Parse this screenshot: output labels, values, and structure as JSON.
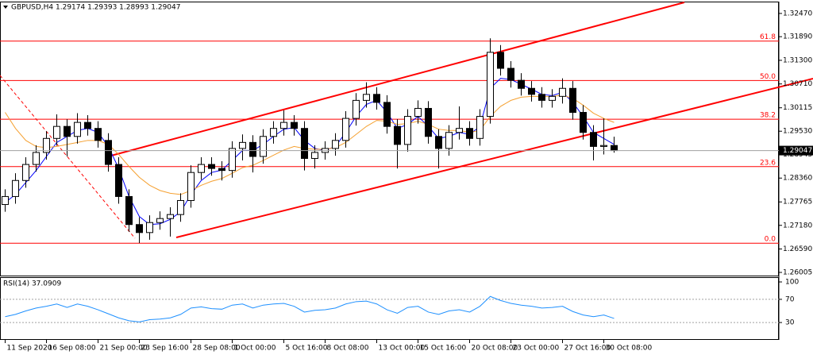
{
  "chart_data": {
    "type": "candlestick",
    "title": "GBPUSD,H4  1.29174 1.29393 1.28993 1.29047",
    "categories": [
      "11 Sep 2020",
      null,
      null,
      null,
      "16 Sep 08:00",
      null,
      null,
      null,
      null,
      "21 Sep 00:00",
      null,
      null,
      null,
      "23 Sep 16:00",
      null,
      null,
      null,
      null,
      "28 Sep 08:00",
      null,
      null,
      null,
      "1 Oct 00:00",
      null,
      null,
      null,
      null,
      "5 Oct 16:00",
      null,
      null,
      null,
      "8 Oct 08:00",
      null,
      null,
      null,
      null,
      "13 Oct 00:00",
      null,
      null,
      null,
      "15 Oct 16:00",
      null,
      null,
      null,
      null,
      "20 Oct 08:00",
      null,
      null,
      null,
      "23 Oct 00:00",
      null,
      null,
      null,
      null,
      "27 Oct 16:00",
      null,
      null,
      null,
      "30 Oct 08:00",
      null
    ],
    "open": [
      1.277,
      1.279,
      1.283,
      1.287,
      1.29,
      1.2935,
      1.2965,
      1.294,
      1.2975,
      1.296,
      1.293,
      1.287,
      1.279,
      1.272,
      1.27,
      1.2725,
      1.2735,
      1.2745,
      1.278,
      1.285,
      1.287,
      1.286,
      1.2855,
      1.291,
      1.2925,
      1.289,
      1.294,
      1.296,
      1.2975,
      1.296,
      1.2885,
      1.29,
      1.291,
      1.293,
      1.2985,
      1.303,
      1.3045,
      1.3025,
      1.2965,
      1.292,
      1.299,
      1.301,
      1.294,
      1.291,
      1.295,
      1.296,
      1.2935,
      1.299,
      1.315,
      1.311,
      1.308,
      1.306,
      1.3045,
      1.303,
      1.304,
      1.306,
      1.3,
      1.295,
      1.2915,
      1.29174
    ],
    "high": [
      1.2808,
      1.2848,
      1.2888,
      1.2918,
      1.2953,
      1.2995,
      1.2983,
      1.2998,
      1.2993,
      1.2978,
      1.2948,
      1.2888,
      1.2808,
      1.2738,
      1.2743,
      1.2753,
      1.2763,
      1.2798,
      1.2868,
      1.2888,
      1.2888,
      1.2878,
      1.2928,
      1.2945,
      1.2943,
      1.2958,
      1.2978,
      1.3005,
      1.2993,
      1.2978,
      1.2918,
      1.2928,
      1.2948,
      1.3003,
      1.3048,
      1.3075,
      1.3063,
      1.3043,
      1.2983,
      1.3008,
      1.303,
      1.3028,
      1.2958,
      1.2968,
      1.3015,
      1.2978,
      1.3008,
      1.3185,
      1.3168,
      1.3128,
      1.3098,
      1.3078,
      1.3063,
      1.3058,
      1.3085,
      1.3078,
      1.3018,
      1.2968,
      1.2985,
      1.29393
    ],
    "low": [
      1.2752,
      1.2772,
      1.2812,
      1.2852,
      1.2882,
      1.2917,
      1.289,
      1.2922,
      1.2942,
      1.2912,
      1.2852,
      1.2772,
      1.2702,
      1.2674,
      1.2682,
      1.2707,
      1.269,
      1.2727,
      1.2762,
      1.2832,
      1.2842,
      1.283,
      1.2837,
      1.288,
      1.285,
      1.2872,
      1.2922,
      1.2942,
      1.2942,
      1.2855,
      1.286,
      1.2882,
      1.2892,
      1.2912,
      1.2967,
      1.3012,
      1.3007,
      1.2947,
      1.286,
      1.2902,
      1.2972,
      1.2922,
      1.286,
      1.2892,
      1.2932,
      1.2917,
      1.2917,
      1.2972,
      1.3092,
      1.3062,
      1.3042,
      1.3027,
      1.3012,
      1.3012,
      1.3022,
      1.2982,
      1.2932,
      1.288,
      1.2895,
      1.28993
    ],
    "close": [
      1.279,
      1.283,
      1.287,
      1.29,
      1.2935,
      1.2965,
      1.294,
      1.2975,
      1.296,
      1.293,
      1.287,
      1.279,
      1.272,
      1.27,
      1.2725,
      1.2735,
      1.2745,
      1.278,
      1.285,
      1.287,
      1.286,
      1.2855,
      1.291,
      1.2925,
      1.289,
      1.294,
      1.296,
      1.2975,
      1.296,
      1.2885,
      1.29,
      1.291,
      1.293,
      1.2985,
      1.303,
      1.3045,
      1.3025,
      1.2965,
      1.292,
      1.299,
      1.301,
      1.294,
      1.291,
      1.295,
      1.296,
      1.2935,
      1.299,
      1.315,
      1.311,
      1.308,
      1.306,
      1.3045,
      1.303,
      1.304,
      1.306,
      1.3,
      1.295,
      1.2915,
      1.29174,
      1.29047
    ],
    "moving_averages": [
      {
        "color": "#0000ff",
        "values": [
          1.2775,
          1.2795,
          1.2825,
          1.2855,
          1.289,
          1.2925,
          1.294,
          1.2955,
          1.296,
          1.295,
          1.2915,
          1.286,
          1.279,
          1.274,
          1.272,
          1.2722,
          1.2733,
          1.2752,
          1.2795,
          1.283,
          1.285,
          1.2856,
          1.288,
          1.2905,
          1.2905,
          1.292,
          1.294,
          1.2958,
          1.2962,
          1.293,
          1.291,
          1.2905,
          1.2915,
          1.295,
          1.299,
          1.302,
          1.303,
          1.3,
          1.296,
          1.297,
          1.299,
          1.2965,
          1.2935,
          1.294,
          1.295,
          1.2945,
          1.2965,
          1.306,
          1.3085,
          1.3082,
          1.307,
          1.3058,
          1.3045,
          1.3042,
          1.305,
          1.3025,
          1.299,
          1.295,
          1.2935,
          1.292
        ]
      },
      {
        "color": "#f5a030",
        "values": [
          1.3,
          1.296,
          1.293,
          1.2915,
          1.2912,
          1.2915,
          1.292,
          1.2925,
          1.293,
          1.293,
          1.292,
          1.2895,
          1.2865,
          1.2838,
          1.2818,
          1.2805,
          1.2798,
          1.2795,
          1.2805,
          1.2818,
          1.2828,
          1.2835,
          1.2848,
          1.2862,
          1.2868,
          1.288,
          1.2893,
          1.2906,
          1.2915,
          1.291,
          1.2908,
          1.2908,
          1.2912,
          1.2925,
          1.2945,
          1.2965,
          1.298,
          1.2978,
          1.297,
          1.2972,
          1.2978,
          1.297,
          1.2958,
          1.2955,
          1.2955,
          1.295,
          1.2955,
          1.299,
          1.3015,
          1.303,
          1.3038,
          1.304,
          1.304,
          1.304,
          1.3043,
          1.3035,
          1.3018,
          1.2998,
          1.2985,
          1.2975
        ]
      }
    ],
    "ylim": [
      1.25926,
      1.32766
    ],
    "yticks": [
      {
        "value": 1.3247,
        "label": "1.32470"
      },
      {
        "value": 1.3189,
        "label": "1.31890"
      },
      {
        "value": 1.313,
        "label": "1.31300"
      },
      {
        "value": 1.3071,
        "label": "1.30710"
      },
      {
        "value": 1.30115,
        "label": "1.30115"
      },
      {
        "value": 1.2953,
        "label": "1.29530"
      },
      {
        "value": 1.28945,
        "label": "1.28945"
      },
      {
        "value": 1.2836,
        "label": "1.28360"
      },
      {
        "value": 1.27765,
        "label": "1.27765"
      },
      {
        "value": 1.2718,
        "label": "1.27180"
      },
      {
        "value": 1.2659,
        "label": "1.26590"
      },
      {
        "value": 1.26005,
        "label": "1.26005"
      }
    ],
    "last_price": {
      "value": 1.29047,
      "label": "1.29047"
    },
    "levels": [
      {
        "value": 1.3178,
        "label": "61.8"
      },
      {
        "value": 1.30795,
        "label": "50.0"
      },
      {
        "value": 1.29829,
        "label": "38.2"
      },
      {
        "value": 1.28646,
        "label": "23.6"
      },
      {
        "value": 1.26734,
        "label": "0.0"
      }
    ],
    "level_color": "#ff0000",
    "indicator": {
      "title": "RSI(14) 37.0909",
      "color": "#1e90ff",
      "values": [
        40,
        44,
        50,
        55,
        58,
        62,
        56,
        62,
        58,
        52,
        45,
        38,
        33,
        31,
        35,
        36,
        38,
        44,
        55,
        57,
        54,
        53,
        60,
        62,
        55,
        60,
        62,
        63,
        58,
        48,
        51,
        52,
        55,
        62,
        66,
        67,
        62,
        52,
        46,
        56,
        58,
        48,
        44,
        50,
        52,
        48,
        58,
        75,
        68,
        63,
        60,
        58,
        55,
        56,
        58,
        49,
        43,
        40,
        43,
        37.0909
      ],
      "ylim": [
        0,
        100
      ],
      "yticks": [
        100,
        70,
        30
      ],
      "levels": [
        70,
        30
      ]
    }
  }
}
